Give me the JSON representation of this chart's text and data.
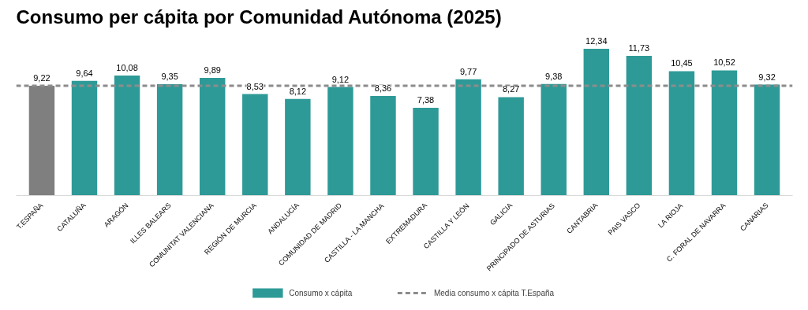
{
  "chart_data": {
    "type": "bar",
    "title": "Consumo per cápita por Comunidad Autónoma (2025)",
    "categories": [
      "T.ESPAÑA",
      "CATALUÑA",
      "ARAGÓN",
      "ILLES BALEARS",
      "COMUNITAT VALENCIANA",
      "REGIÓN DE MURCIA",
      "ANDALUCÍA",
      "COMUNIDAD DE MADRID",
      "CASTILLA - LA MANCHA",
      "EXTREMADURA",
      "CASTILLA Y LEÓN",
      "GALICIA",
      "PRINCIPADO DE ASTURIAS",
      "CANTABRIA",
      "PAIS VASCO",
      "LA RIOJA",
      "C. FORAL DE NAVARRA",
      "CANARIAS"
    ],
    "series": [
      {
        "name": "Consumo x cápita",
        "color": "#2e9a97",
        "colors": [
          "#7f7f7f",
          null,
          null,
          null,
          null,
          null,
          null,
          null,
          null,
          null,
          null,
          null,
          null,
          null,
          null,
          null,
          null,
          null
        ],
        "values": [
          9.22,
          9.64,
          10.08,
          9.35,
          9.89,
          8.53,
          8.12,
          9.12,
          8.36,
          7.38,
          9.77,
          8.27,
          9.38,
          12.34,
          11.73,
          10.45,
          10.52,
          9.32
        ],
        "value_labels": [
          "9,22",
          "9,64",
          "10,08",
          "9,35",
          "9,89",
          "8,53",
          "8,12",
          "9,12",
          "8,36",
          "7,38",
          "9,77",
          "8,27",
          "9,38",
          "12,34",
          "11,73",
          "10,45",
          "10,52",
          "9,32"
        ]
      }
    ],
    "ref_lines": [
      {
        "axis": "y",
        "value": 9.22,
        "label": "Media consumo x cápita T.España",
        "color": "#8c8c8c",
        "line_style": "dashed"
      }
    ],
    "tick_labels": "x",
    "grid": false,
    "legend": "bottom"
  }
}
